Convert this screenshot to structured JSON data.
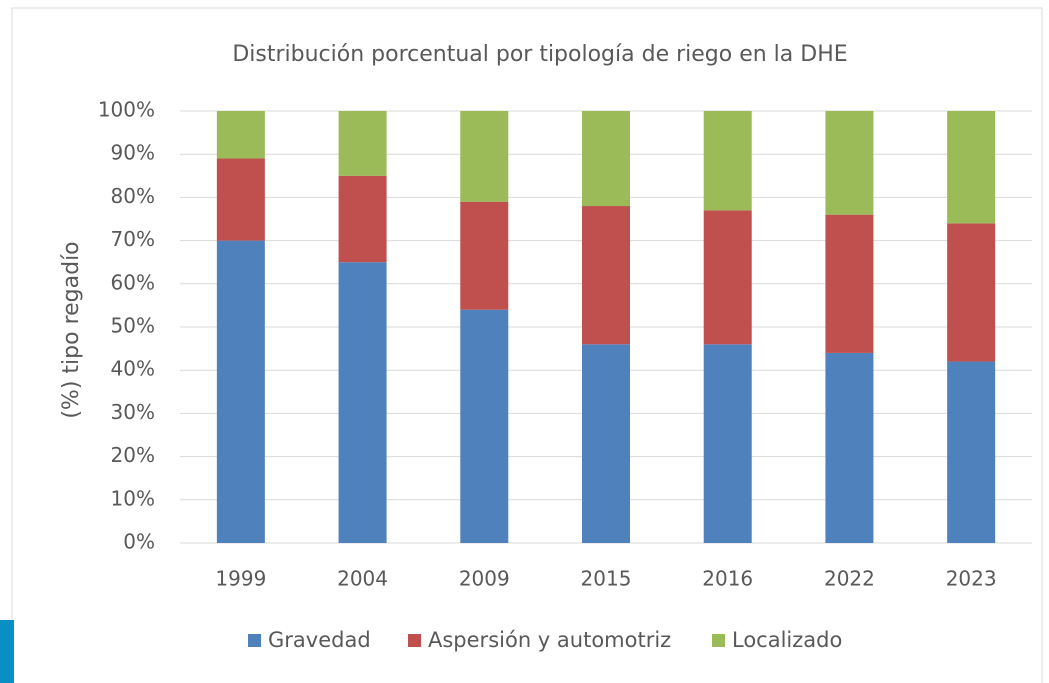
{
  "chart_data": {
    "type": "stacked_bar",
    "title": "Distribución porcentual por tipología de riego en la DHE",
    "y_label": "(%) tipo regadío",
    "categories": [
      "1999",
      "2004",
      "2009",
      "2015",
      "2016",
      "2022",
      "2023"
    ],
    "series": [
      {
        "name": "Gravedad",
        "color": "#4f81bd",
        "values": [
          70,
          65,
          54,
          46,
          46,
          44,
          42
        ]
      },
      {
        "name": "Aspersión y automotriz",
        "color": "#c0504d",
        "values": [
          19,
          20,
          25,
          32,
          31,
          32,
          32
        ]
      },
      {
        "name": "Localizado",
        "color": "#9bbb59",
        "values": [
          11,
          15,
          21,
          22,
          23,
          24,
          26
        ]
      }
    ],
    "ylim": [
      0,
      100
    ],
    "yticks": [
      {
        "value": 0,
        "label": "0%"
      },
      {
        "value": 10,
        "label": "10%"
      },
      {
        "value": 20,
        "label": "20%"
      },
      {
        "value": 30,
        "label": "30%"
      },
      {
        "value": 40,
        "label": "40%"
      },
      {
        "value": 50,
        "label": "50%"
      },
      {
        "value": 60,
        "label": "60%"
      },
      {
        "value": 70,
        "label": "70%"
      },
      {
        "value": 80,
        "label": "80%"
      },
      {
        "value": 90,
        "label": "90%"
      },
      {
        "value": 100,
        "label": "100%"
      }
    ],
    "grid": true,
    "legend": "bottom"
  }
}
